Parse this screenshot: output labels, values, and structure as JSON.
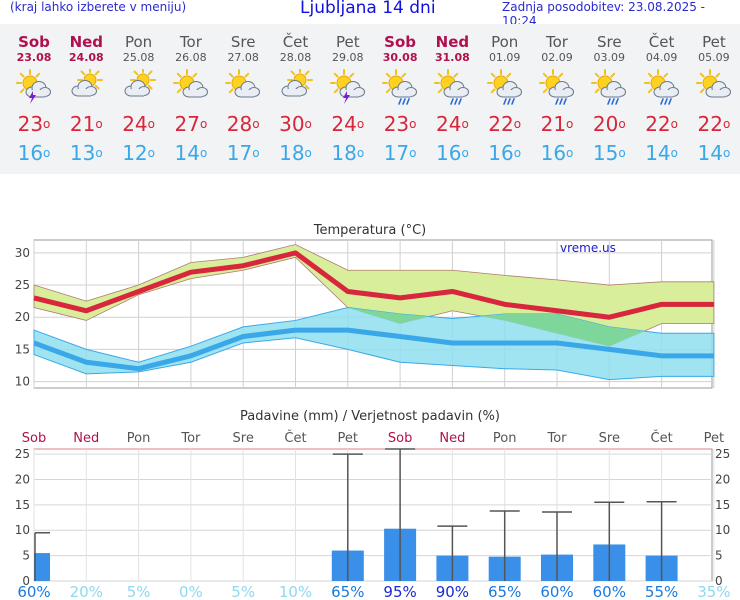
{
  "header": {
    "hint": "(kraj lahko izberete v meniju)",
    "title": "Ljubljana 14 dni",
    "updated": "Zadnja posodobitev: 23.08.2025 - 10:24"
  },
  "days": [
    {
      "name": "Sob",
      "date": "23.08",
      "weekend": true,
      "icon": "sun-cloud-lightning-icon",
      "tmax": "23",
      "tmin": "16"
    },
    {
      "name": "Ned",
      "date": "24.08",
      "weekend": true,
      "icon": "cloud-sun-icon",
      "tmax": "21",
      "tmin": "13"
    },
    {
      "name": "Pon",
      "date": "25.08",
      "weekend": false,
      "icon": "cloud-sun-icon",
      "tmax": "24",
      "tmin": "12"
    },
    {
      "name": "Tor",
      "date": "26.08",
      "weekend": false,
      "icon": "sun-cloud-icon",
      "tmax": "27",
      "tmin": "14"
    },
    {
      "name": "Sre",
      "date": "27.08",
      "weekend": false,
      "icon": "sun-cloud-icon",
      "tmax": "28",
      "tmin": "17"
    },
    {
      "name": "Čet",
      "date": "28.08",
      "weekend": false,
      "icon": "cloud-sun-icon",
      "tmax": "30",
      "tmin": "18"
    },
    {
      "name": "Pet",
      "date": "29.08",
      "weekend": false,
      "icon": "sun-cloud-lightning-icon",
      "tmax": "24",
      "tmin": "18"
    },
    {
      "name": "Sob",
      "date": "30.08",
      "weekend": true,
      "icon": "sun-cloud-rain-icon",
      "tmax": "23",
      "tmin": "17"
    },
    {
      "name": "Ned",
      "date": "31.08",
      "weekend": true,
      "icon": "sun-cloud-rain-icon",
      "tmax": "24",
      "tmin": "16"
    },
    {
      "name": "Pon",
      "date": "01.09",
      "weekend": false,
      "icon": "sun-cloud-rain-icon",
      "tmax": "22",
      "tmin": "16"
    },
    {
      "name": "Tor",
      "date": "02.09",
      "weekend": false,
      "icon": "sun-cloud-rain-icon",
      "tmax": "21",
      "tmin": "16"
    },
    {
      "name": "Sre",
      "date": "03.09",
      "weekend": false,
      "icon": "sun-cloud-rain-icon",
      "tmax": "20",
      "tmin": "15"
    },
    {
      "name": "Čet",
      "date": "04.09",
      "weekend": false,
      "icon": "sun-cloud-rain-icon",
      "tmax": "22",
      "tmin": "14"
    },
    {
      "name": "Pet",
      "date": "05.09",
      "weekend": false,
      "icon": "sun-cloud-icon",
      "tmax": "22",
      "tmin": "14"
    }
  ],
  "colors": {
    "weekend": "#b0104e",
    "tmax": "#d8263c",
    "tmin": "#3aa8e8",
    "tmax_band": "#d9ee9a",
    "tmin_band": "#8fdff0",
    "overlap": "#7fd69a",
    "bar": "#3a8fe8",
    "bar_dark": "#1a4ad0",
    "prob_high": "#1a2ad0",
    "prob_low": "#8fd8f0"
  },
  "chart_data": [
    {
      "type": "line",
      "title": "Temperatura (°C)",
      "watermark": "vreme.us",
      "ylim": [
        9,
        32
      ],
      "yticks": [
        10,
        15,
        20,
        25,
        30
      ],
      "grid": true,
      "x": [
        0,
        1,
        2,
        3,
        4,
        5,
        6,
        7,
        8,
        9,
        10,
        11,
        12,
        13
      ],
      "series": [
        {
          "values": [
            23,
            21,
            24,
            27,
            28,
            30,
            24,
            23,
            24,
            22,
            21,
            20,
            22,
            22
          ]
        },
        {
          "values": [
            16,
            13,
            12,
            14,
            17,
            18,
            18,
            17,
            16,
            16,
            16,
            15,
            14,
            14
          ]
        }
      ],
      "bands": [
        {
          "upper": [
            25,
            22.5,
            25,
            28.5,
            29.3,
            31.3,
            27.3,
            27.3,
            27.3,
            26.5,
            25.8,
            25,
            25.5,
            25.5
          ],
          "lower": [
            21.5,
            19.5,
            23.5,
            26,
            27.3,
            29.3,
            21.5,
            19,
            21,
            19.5,
            17.5,
            15.5,
            19,
            19
          ]
        },
        {
          "upper": [
            18,
            15,
            13,
            15.5,
            18.5,
            19.5,
            21.5,
            20.5,
            19.8,
            20.5,
            20.5,
            18.5,
            17.5,
            17.5
          ],
          "lower": [
            14.2,
            11.2,
            11.5,
            13,
            16,
            16.8,
            15,
            13,
            12.5,
            12,
            11.8,
            10.3,
            10.8,
            10.8
          ]
        }
      ]
    },
    {
      "type": "bar",
      "title": "Padavine (mm) / Verjetnost padavin (%)",
      "ylim": [
        0,
        26
      ],
      "yticks": [
        0,
        5,
        10,
        15,
        20,
        25
      ],
      "grid": true,
      "categories": [
        "Sob",
        "Ned",
        "Pon",
        "Tor",
        "Sre",
        "Čet",
        "Pet",
        "Sob",
        "Ned",
        "Pon",
        "Tor",
        "Sre",
        "Čet",
        "Pet"
      ],
      "values": [
        5.5,
        0,
        0,
        0,
        0,
        0,
        6,
        10.3,
        5,
        4.8,
        5.2,
        7.2,
        5,
        0
      ],
      "error_max": [
        9.5,
        0,
        0,
        0,
        0,
        0,
        25,
        26,
        10.8,
        13.8,
        13.6,
        15.5,
        15.6,
        0
      ],
      "probability": [
        "60%",
        "20%",
        "5%",
        "0%",
        "5%",
        "10%",
        "65%",
        "95%",
        "90%",
        "65%",
        "60%",
        "60%",
        "55%",
        "35%"
      ]
    }
  ]
}
